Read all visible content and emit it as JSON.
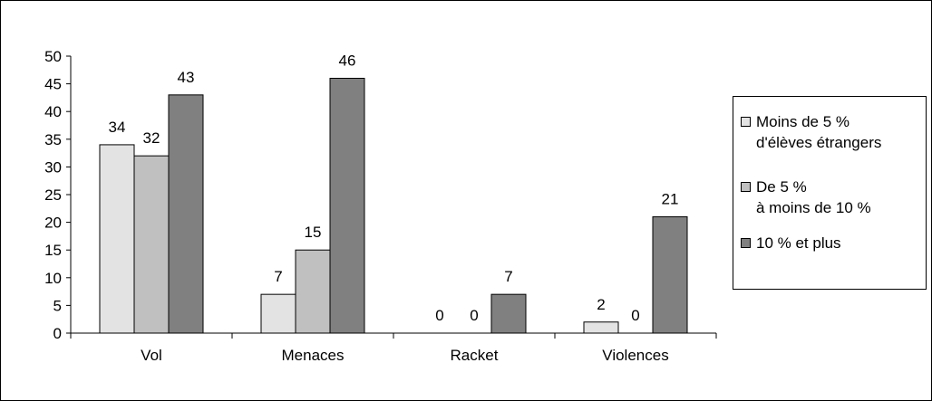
{
  "chart_data": {
    "type": "bar",
    "categories": [
      "Vol",
      "Menaces",
      "Racket",
      "Violences"
    ],
    "series": [
      {
        "name": "Moins de 5 %\nd'élèves étrangers",
        "values": [
          34,
          7,
          0,
          2
        ],
        "color": "#e3e3e3"
      },
      {
        "name": "De 5 %\nà moins de 10 %",
        "values": [
          32,
          15,
          0,
          0
        ],
        "color": "#c0c0c0"
      },
      {
        "name": "10 % et plus",
        "values": [
          43,
          46,
          7,
          21
        ],
        "color": "#808080"
      }
    ],
    "ylim": [
      0,
      50
    ],
    "yticks": [
      0,
      5,
      10,
      15,
      20,
      25,
      30,
      35,
      40,
      45,
      50
    ],
    "legend_position": "right",
    "grid": false
  }
}
